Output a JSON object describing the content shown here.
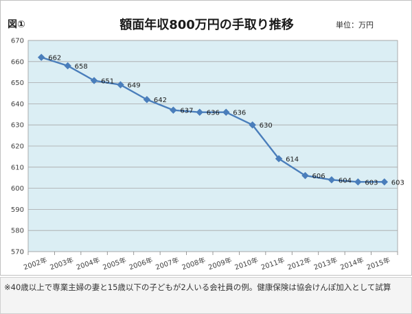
{
  "chart_data": {
    "type": "line",
    "figure_label": "図①",
    "title": "額面年収800万円の手取り推移",
    "unit_label": "単位：万円",
    "categories": [
      "2002年",
      "2003年",
      "2004年",
      "2005年",
      "2006年",
      "2007年",
      "2008年",
      "2009年",
      "2010年",
      "2011年",
      "2012年",
      "2013年",
      "2014年",
      "2015年"
    ],
    "series": [
      {
        "values": [
          662,
          658,
          651,
          649,
          642,
          637,
          636,
          636,
          630,
          614,
          606,
          604,
          603,
          603
        ]
      }
    ],
    "ylim": [
      570,
      670
    ],
    "yticks": [
      570,
      580,
      590,
      600,
      610,
      620,
      630,
      640,
      650,
      660,
      670
    ],
    "grid": "horizontal",
    "data_labels": true,
    "marker": "diamond",
    "colors": {
      "line": "#4a7ebb",
      "plot_background": "#dbeef4",
      "grid": "#a6a6a6"
    }
  },
  "footnote": "※40歳以上で専業主婦の妻と15歳以下の子どもが2人いる会社員の例。健康保険は協会けんぽ加入として試算"
}
